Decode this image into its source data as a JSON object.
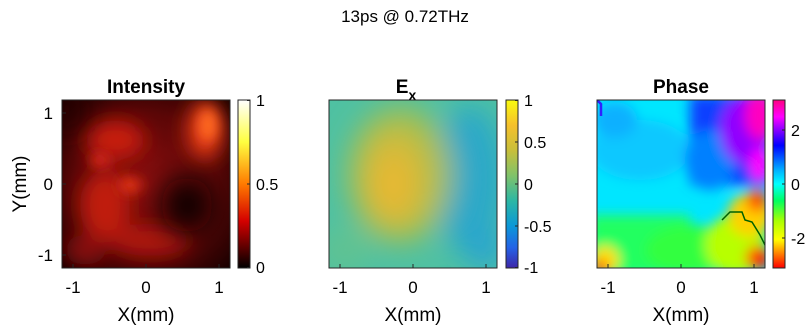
{
  "chart_data": {
    "type": "heatmap",
    "suptitle": "13ps @ 0.72THz",
    "panels": [
      {
        "title": "Intensity",
        "title_subscript": "",
        "colormap": "hot",
        "xlabel": "X(mm)",
        "ylabel": "Y(mm)",
        "x_ticks": [
          "-1",
          "0",
          "1"
        ],
        "y_ticks": [
          "1",
          "0",
          "-1"
        ],
        "colorbar_range": [
          0,
          1
        ],
        "colorbar_ticks": [
          "1",
          "0.5",
          "0"
        ]
      },
      {
        "title": "E",
        "title_subscript": "x",
        "colormap": "parula",
        "xlabel": "X(mm)",
        "ylabel": "",
        "x_ticks": [
          "-1",
          "0",
          "1"
        ],
        "y_ticks": [],
        "colorbar_range": [
          -1,
          1
        ],
        "colorbar_ticks": [
          "1",
          "0.5",
          "0",
          "-0.5",
          "-1"
        ]
      },
      {
        "title": "Phase",
        "title_subscript": "",
        "colormap": "hsv",
        "xlabel": "X(mm)",
        "ylabel": "",
        "x_ticks": [
          "-1",
          "0",
          "1"
        ],
        "y_ticks": [],
        "colorbar_range": [
          -3.14,
          3.14
        ],
        "colorbar_ticks": [
          "2",
          "0",
          "-2"
        ]
      }
    ]
  },
  "colors": {
    "background": "#ffffff",
    "axis": "#262626"
  }
}
